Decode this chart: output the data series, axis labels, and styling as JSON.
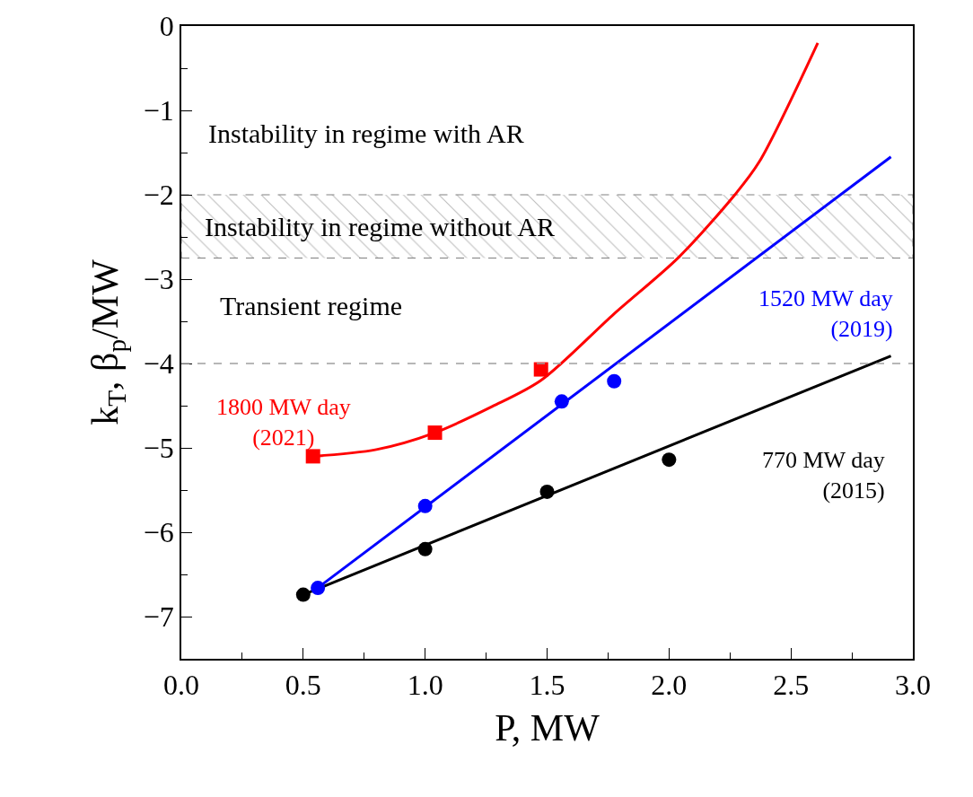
{
  "chart_data": {
    "type": "scatter",
    "xlabel": "P, MW",
    "ylabel": "k$_{T}$, β$_{p}$/MW",
    "xlim": [
      0,
      3
    ],
    "xticks": [
      {
        "value": 0,
        "label": "0.0"
      },
      0.5,
      {
        "value": 1,
        "label": "1.0"
      },
      1.5,
      {
        "value": 2,
        "label": "2.0"
      },
      2.5,
      {
        "value": 3,
        "label": "3.0"
      }
    ],
    "ylim": [
      -7.5,
      0
    ],
    "yticks": [
      {
        "value": -7,
        "label": "−7"
      },
      {
        "value": -6,
        "label": "−6"
      },
      {
        "value": -5,
        "label": "−5"
      },
      {
        "value": -4,
        "label": "−4"
      },
      {
        "value": -3,
        "label": "−3"
      },
      {
        "value": -2,
        "label": "−2"
      },
      {
        "value": -1,
        "label": "−1"
      },
      0
    ],
    "series": [
      {
        "type": "line",
        "color": "#ff0000",
        "x": [
          0.54,
          0.8,
          1.04,
          1.275,
          1.475,
          1.775,
          2.04,
          2.27,
          2.37,
          2.61
        ],
        "values": [
          -5.1,
          -5.02,
          -4.82,
          -4.51,
          -4.2,
          -3.41,
          -2.74,
          -2.0,
          -1.61,
          -0.2
        ],
        "marker": "none"
      },
      {
        "type": "line",
        "color": "#0000ff",
        "x": [
          0.55,
          2.91
        ],
        "values": [
          -6.68,
          -1.55
        ],
        "marker": "none"
      },
      {
        "type": "line",
        "color": "#000000",
        "x": [
          0.5,
          2.91
        ],
        "values": [
          -6.74,
          -3.91
        ],
        "marker": "none"
      },
      {
        "name": "1800 MW day\n(2021)",
        "color": "#ff0000",
        "marker": "square",
        "x": [
          0.54,
          1.04,
          1.475
        ],
        "values": [
          -5.1,
          -4.82,
          -4.07
        ]
      },
      {
        "name": "1520 MW day\n(2019)",
        "color": "#0000ff",
        "marker": "circle",
        "x": [
          0.56,
          1.0,
          1.56,
          1.775
        ],
        "values": [
          -6.66,
          -5.69,
          -4.45,
          -4.21
        ]
      },
      {
        "name": "770 MW day\n(2015)",
        "color": "#000000",
        "marker": "circle",
        "x": [
          0.5,
          1.0,
          1.5,
          2.0
        ],
        "values": [
          -6.74,
          -6.2,
          -5.52,
          -5.14
        ]
      }
    ],
    "bands": [
      {
        "axis": "y",
        "from": -2.75,
        "to": -2.0,
        "label": "Instability in regime without AR",
        "color": "#808080"
      }
    ],
    "ref_lines": [
      {
        "axis": "y",
        "value": -4.0,
        "color": "#a0a0a0",
        "line_style": "dashed"
      }
    ],
    "annotations": [
      "Instability in regime with AR",
      "Transient regime"
    ]
  }
}
